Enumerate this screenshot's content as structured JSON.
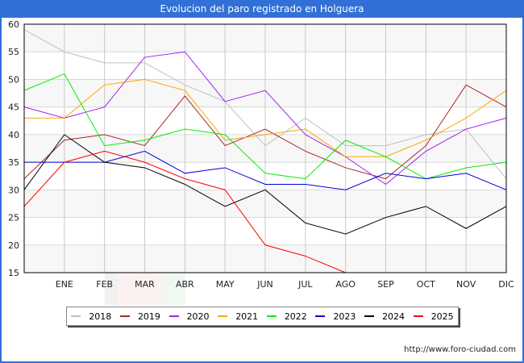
{
  "title": "Evolucion del paro registrado en Holguera",
  "source": "http://www.foro-ciudad.com",
  "chart_data": {
    "type": "line",
    "title": "Evolucion del paro registrado en Holguera",
    "xlabel": "",
    "ylabel": "",
    "categories": [
      "",
      "ENE",
      "FEB",
      "MAR",
      "ABR",
      "MAY",
      "JUN",
      "JUL",
      "AGO",
      "SEP",
      "OCT",
      "NOV",
      "DIC"
    ],
    "ylim": [
      15,
      60
    ],
    "yticks": [
      15,
      20,
      25,
      30,
      35,
      40,
      45,
      50,
      55,
      60
    ],
    "grid": true,
    "legend_position": "bottom",
    "series": [
      {
        "name": "2018",
        "color": "#c0c0c0",
        "values": [
          59,
          55,
          53,
          53,
          49,
          46,
          38,
          43,
          38,
          38,
          40,
          41,
          32
        ]
      },
      {
        "name": "2019",
        "color": "#a52a2a",
        "values": [
          32,
          39,
          40,
          38,
          47,
          38,
          41,
          37,
          34,
          32,
          38,
          49,
          45
        ]
      },
      {
        "name": "2020",
        "color": "#a020f0",
        "values": [
          45,
          43,
          45,
          54,
          55,
          46,
          48,
          40,
          36,
          31,
          37,
          41,
          43
        ]
      },
      {
        "name": "2021",
        "color": "#ffa500",
        "values": [
          43,
          43,
          49,
          50,
          48,
          39,
          40,
          41,
          36,
          36,
          39,
          43,
          48
        ]
      },
      {
        "name": "2022",
        "color": "#00ee00",
        "values": [
          48,
          51,
          38,
          39,
          41,
          40,
          33,
          32,
          39,
          36,
          32,
          34,
          35
        ]
      },
      {
        "name": "2023",
        "color": "#0000dd",
        "values": [
          35,
          35,
          35,
          37,
          33,
          34,
          31,
          31,
          30,
          33,
          32,
          33,
          30
        ]
      },
      {
        "name": "2024",
        "color": "#000000",
        "values": [
          30,
          40,
          35,
          34,
          31,
          27,
          30,
          24,
          22,
          25,
          27,
          23,
          27
        ]
      },
      {
        "name": "2025",
        "color": "#ff0000",
        "values": [
          27,
          35,
          37,
          35,
          32,
          30,
          20,
          18,
          15,
          null,
          null,
          null,
          null
        ]
      }
    ]
  }
}
